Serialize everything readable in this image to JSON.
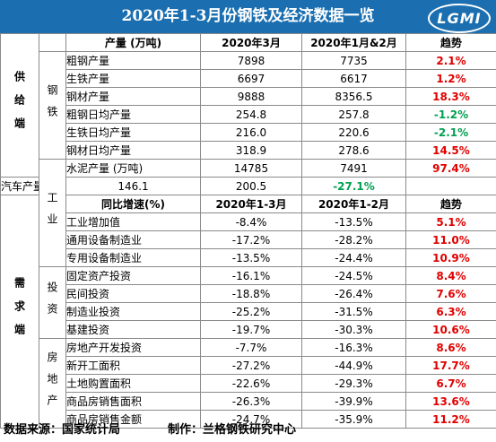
{
  "title": "2020年1-3月份钢铁及经济数据一览",
  "logo_text": "LGMI",
  "sections": {
    "supply": "供给端",
    "demand": "需求端"
  },
  "groups": {
    "steel": "钢铁",
    "industry": "工业",
    "investment": "投资",
    "real_estate": "房地产"
  },
  "header1": {
    "c1": "产量 (万吨)",
    "c2": "2020年3月",
    "c3": "2020年1月&2月",
    "c4": "趋势"
  },
  "header2": {
    "c1": "同比增速(%)",
    "c2": "2020年1-3月",
    "c3": "2020年1-2月",
    "c4": "趋势"
  },
  "rows": [
    {
      "name": "粗钢产量",
      "v1": "7898",
      "v2": "7735",
      "trend": "2.1%",
      "color": "#e00000"
    },
    {
      "name": "生铁产量",
      "v1": "6697",
      "v2": "6617",
      "trend": "1.2%",
      "color": "#e00000"
    },
    {
      "name": "钢材产量",
      "v1": "9888",
      "v2": "8356.5",
      "trend": "18.3%",
      "color": "#e00000"
    },
    {
      "name": "粗钢日均产量",
      "v1": "254.8",
      "v2": "257.8",
      "trend": "-1.2%",
      "color": "#00a050"
    },
    {
      "name": "生铁日均产量",
      "v1": "216.0",
      "v2": "220.6",
      "trend": "-2.1%",
      "color": "#00a050"
    },
    {
      "name": "钢材日均产量",
      "v1": "318.9",
      "v2": "278.6",
      "trend": "14.5%",
      "color": "#e00000"
    },
    {
      "name": "水泥产量 (万吨)",
      "v1": "14785",
      "v2": "7491",
      "trend": "97.4%",
      "color": "#e00000"
    },
    {
      "name": "汽车产量 (万辆)",
      "v1": "146.1",
      "v2": "200.5",
      "trend": "-27.1%",
      "color": "#00a050"
    },
    {
      "name": "工业增加值",
      "v1": "-8.4%",
      "v2": "-13.5%",
      "trend": "5.1%",
      "color": "#e00000"
    },
    {
      "name": "通用设备制造业",
      "v1": "-17.2%",
      "v2": "-28.2%",
      "trend": "11.0%",
      "color": "#e00000"
    },
    {
      "name": "专用设备制造业",
      "v1": "-13.5%",
      "v2": "-24.4%",
      "trend": "10.9%",
      "color": "#e00000"
    },
    {
      "name": "固定资产投资",
      "v1": "-16.1%",
      "v2": "-24.5%",
      "trend": "8.4%",
      "color": "#e00000"
    },
    {
      "name": "民间投资",
      "v1": "-18.8%",
      "v2": "-26.4%",
      "trend": "7.6%",
      "color": "#e00000"
    },
    {
      "name": "制造业投资",
      "v1": "-25.2%",
      "v2": "-31.5%",
      "trend": "6.3%",
      "color": "#e00000"
    },
    {
      "name": "基建投资",
      "v1": "-19.7%",
      "v2": "-30.3%",
      "trend": "10.6%",
      "color": "#e00000"
    },
    {
      "name": "房地产开发投资",
      "v1": "-7.7%",
      "v2": "-16.3%",
      "trend": "8.6%",
      "color": "#e00000"
    },
    {
      "name": "新开工面积",
      "v1": "-27.2%",
      "v2": "-44.9%",
      "trend": "17.7%",
      "color": "#e00000"
    },
    {
      "name": "土地购置面积",
      "v1": "-22.6%",
      "v2": "-29.3%",
      "trend": "6.7%",
      "color": "#e00000"
    },
    {
      "name": "商品房销售面积",
      "v1": "-26.3%",
      "v2": "-39.9%",
      "trend": "13.6%",
      "color": "#e00000"
    },
    {
      "name": "商品房销售金额",
      "v1": "-24.7%",
      "v2": "-35.9%",
      "trend": "11.2%",
      "color": "#e00000"
    }
  ],
  "footer": {
    "source": "数据来源：国家统计局",
    "made_by": "制作：兰格钢铁研究中心"
  }
}
